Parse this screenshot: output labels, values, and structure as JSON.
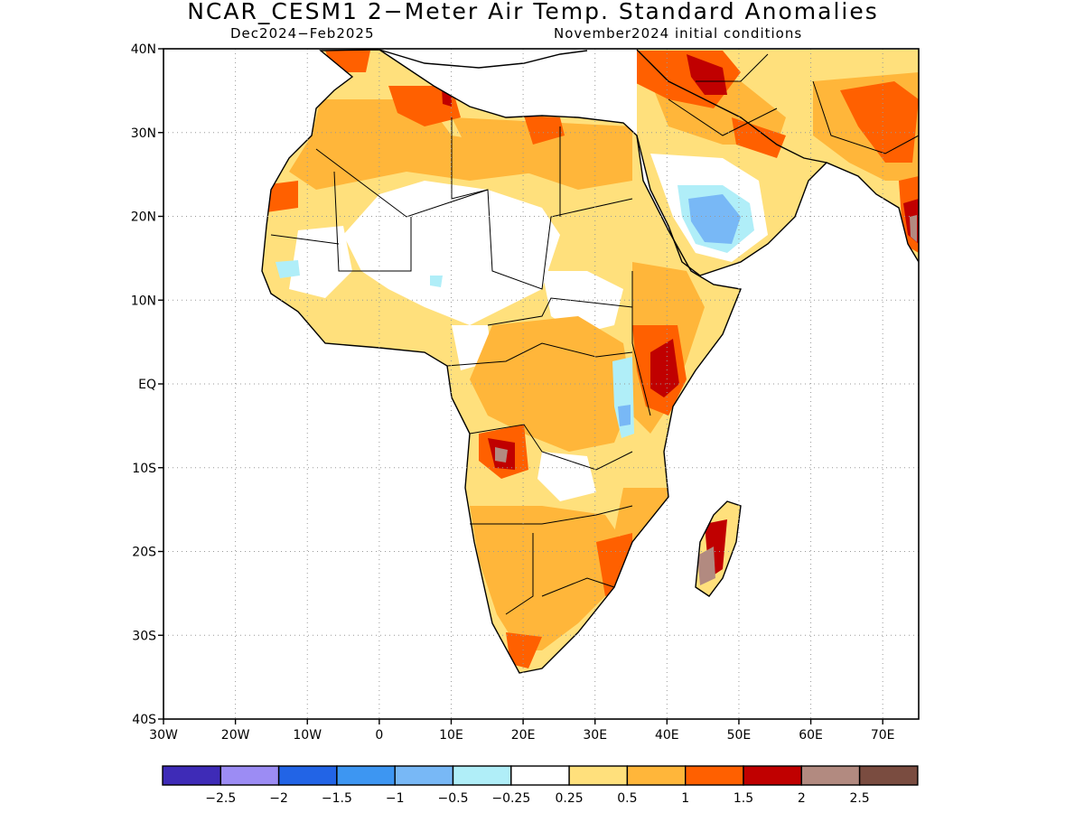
{
  "title": "NCAR_CESM1 2−Meter Air Temp. Standard Anomalies",
  "subtitle_left": "Dec2024−Feb2025",
  "subtitle_right": "November2024 initial conditions",
  "map": {
    "region": "Africa",
    "lat_range": [
      -40,
      40
    ],
    "lon_range": [
      -30,
      75
    ],
    "lat_ticks": [
      "40N",
      "30N",
      "20N",
      "10N",
      "EQ",
      "10S",
      "20S",
      "30S",
      "40S"
    ],
    "lon_ticks": [
      "30W",
      "20W",
      "10W",
      "0",
      "10E",
      "20E",
      "30E",
      "40E",
      "50E",
      "60E",
      "70E"
    ],
    "grid": true
  },
  "colorbar": {
    "colors": [
      "#3e2bb7",
      "#9c8cf4",
      "#2264e6",
      "#3d96f2",
      "#78b8f6",
      "#b0eef8",
      "#ffffff",
      "#ffe07c",
      "#ffb63a",
      "#ff6000",
      "#c00000",
      "#b28a80",
      "#7a4c40"
    ],
    "labels": [
      "−2.5",
      "−2",
      "−1.5",
      "−1",
      "−0.5",
      "−0.25",
      "0.25",
      "0.5",
      "1",
      "1.5",
      "2",
      "2.5"
    ]
  }
}
